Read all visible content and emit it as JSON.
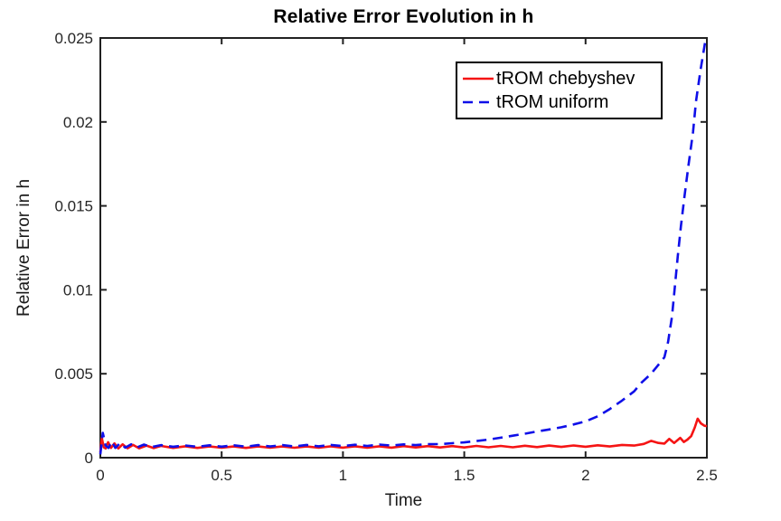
{
  "chart_data": {
    "type": "line",
    "title": "Relative Error Evolution in h",
    "xlabel": "Time",
    "ylabel": "Relative Error in h",
    "xlim": [
      0,
      2.5
    ],
    "ylim": [
      0,
      0.025
    ],
    "grid": false,
    "frame_color": "#212121",
    "tick_label_color": "#262626",
    "x_ticks": {
      "values": [
        0,
        0.5,
        1,
        1.5,
        2,
        2.5
      ],
      "labels": [
        "0",
        "0.5",
        "1",
        "1.5",
        "2",
        "2.5"
      ]
    },
    "y_ticks": {
      "values": [
        0,
        0.005,
        0.01,
        0.015,
        0.02,
        0.025
      ],
      "labels": [
        "0",
        "0.005",
        "0.01",
        "0.015",
        "0.02",
        "0.025"
      ]
    },
    "legend": {
      "position": "upper-right-inside",
      "border": true
    },
    "series": [
      {
        "name": "tROM chebyshev",
        "color": "#f51414",
        "dashed": false,
        "points": [
          [
            0.0,
            0.0003
          ],
          [
            0.006,
            0.00118
          ],
          [
            0.014,
            0.00062
          ],
          [
            0.022,
            0.00055
          ],
          [
            0.032,
            0.00092
          ],
          [
            0.044,
            0.00058
          ],
          [
            0.058,
            0.00085
          ],
          [
            0.074,
            0.00055
          ],
          [
            0.092,
            0.0008
          ],
          [
            0.112,
            0.00056
          ],
          [
            0.135,
            0.00076
          ],
          [
            0.16,
            0.00056
          ],
          [
            0.19,
            0.00072
          ],
          [
            0.22,
            0.00057
          ],
          [
            0.25,
            0.0007
          ],
          [
            0.3,
            0.00058
          ],
          [
            0.35,
            0.00068
          ],
          [
            0.4,
            0.00058
          ],
          [
            0.45,
            0.00067
          ],
          [
            0.5,
            0.00059
          ],
          [
            0.55,
            0.00067
          ],
          [
            0.6,
            0.00058
          ],
          [
            0.65,
            0.00067
          ],
          [
            0.7,
            0.00059
          ],
          [
            0.75,
            0.00067
          ],
          [
            0.8,
            0.00059
          ],
          [
            0.85,
            0.00067
          ],
          [
            0.9,
            0.00059
          ],
          [
            0.95,
            0.00068
          ],
          [
            1.0,
            0.0006
          ],
          [
            1.05,
            0.00068
          ],
          [
            1.1,
            0.0006
          ],
          [
            1.15,
            0.00068
          ],
          [
            1.2,
            0.0006
          ],
          [
            1.25,
            0.00069
          ],
          [
            1.3,
            0.00061
          ],
          [
            1.35,
            0.00069
          ],
          [
            1.4,
            0.00061
          ],
          [
            1.45,
            0.00069
          ],
          [
            1.5,
            0.00061
          ],
          [
            1.55,
            0.0007
          ],
          [
            1.6,
            0.00062
          ],
          [
            1.65,
            0.0007
          ],
          [
            1.7,
            0.00062
          ],
          [
            1.75,
            0.00071
          ],
          [
            1.8,
            0.00063
          ],
          [
            1.85,
            0.00072
          ],
          [
            1.9,
            0.00064
          ],
          [
            1.95,
            0.00073
          ],
          [
            2.0,
            0.00065
          ],
          [
            2.05,
            0.00074
          ],
          [
            2.1,
            0.00067
          ],
          [
            2.15,
            0.00076
          ],
          [
            2.2,
            0.00072
          ],
          [
            2.24,
            0.00082
          ],
          [
            2.27,
            0.001
          ],
          [
            2.3,
            0.00088
          ],
          [
            2.325,
            0.00084
          ],
          [
            2.345,
            0.00112
          ],
          [
            2.365,
            0.00088
          ],
          [
            2.39,
            0.00118
          ],
          [
            2.405,
            0.00094
          ],
          [
            2.42,
            0.00108
          ],
          [
            2.435,
            0.00128
          ],
          [
            2.45,
            0.0018
          ],
          [
            2.462,
            0.00232
          ],
          [
            2.475,
            0.00205
          ],
          [
            2.49,
            0.0019
          ],
          [
            2.5,
            0.00188
          ]
        ]
      },
      {
        "name": "tROM uniform",
        "color": "#0f0fe8",
        "dashed": true,
        "points": [
          [
            0.0,
            0.0002
          ],
          [
            0.01,
            0.00148
          ],
          [
            0.022,
            0.00072
          ],
          [
            0.034,
            0.00058
          ],
          [
            0.047,
            0.00098
          ],
          [
            0.062,
            0.00058
          ],
          [
            0.082,
            0.00088
          ],
          [
            0.103,
            0.0006
          ],
          [
            0.127,
            0.0008
          ],
          [
            0.152,
            0.00062
          ],
          [
            0.18,
            0.00078
          ],
          [
            0.21,
            0.00063
          ],
          [
            0.25,
            0.00075
          ],
          [
            0.3,
            0.00065
          ],
          [
            0.35,
            0.00073
          ],
          [
            0.4,
            0.00065
          ],
          [
            0.45,
            0.00074
          ],
          [
            0.5,
            0.00066
          ],
          [
            0.55,
            0.00074
          ],
          [
            0.6,
            0.00066
          ],
          [
            0.65,
            0.00075
          ],
          [
            0.7,
            0.00067
          ],
          [
            0.75,
            0.00075
          ],
          [
            0.8,
            0.00067
          ],
          [
            0.85,
            0.00076
          ],
          [
            0.9,
            0.00068
          ],
          [
            0.95,
            0.00076
          ],
          [
            1.0,
            0.00069
          ],
          [
            1.05,
            0.00077
          ],
          [
            1.1,
            0.0007
          ],
          [
            1.15,
            0.00078
          ],
          [
            1.2,
            0.00072
          ],
          [
            1.25,
            0.00079
          ],
          [
            1.3,
            0.00075
          ],
          [
            1.35,
            0.00081
          ],
          [
            1.4,
            0.00081
          ],
          [
            1.45,
            0.00086
          ],
          [
            1.5,
            0.00091
          ],
          [
            1.55,
            0.00099
          ],
          [
            1.6,
            0.00108
          ],
          [
            1.65,
            0.00119
          ],
          [
            1.7,
            0.00131
          ],
          [
            1.75,
            0.00143
          ],
          [
            1.8,
            0.00156
          ],
          [
            1.85,
            0.00168
          ],
          [
            1.9,
            0.00181
          ],
          [
            1.95,
            0.00198
          ],
          [
            2.0,
            0.00216
          ],
          [
            2.05,
            0.00246
          ],
          [
            2.1,
            0.0029
          ],
          [
            2.15,
            0.0034
          ],
          [
            2.2,
            0.00395
          ],
          [
            2.23,
            0.00446
          ],
          [
            2.27,
            0.005
          ],
          [
            2.3,
            0.00553
          ],
          [
            2.325,
            0.00598
          ],
          [
            2.34,
            0.0069
          ],
          [
            2.356,
            0.0084
          ],
          [
            2.368,
            0.0102
          ],
          [
            2.38,
            0.012
          ],
          [
            2.393,
            0.0138
          ],
          [
            2.408,
            0.0156
          ],
          [
            2.424,
            0.0174
          ],
          [
            2.443,
            0.0194
          ],
          [
            2.455,
            0.0212
          ],
          [
            2.474,
            0.0231
          ],
          [
            2.492,
            0.0247
          ],
          [
            2.5,
            0.0248
          ]
        ]
      }
    ]
  }
}
